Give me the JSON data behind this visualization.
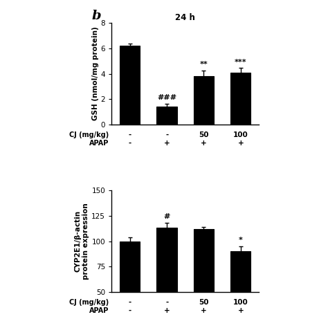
{
  "top_chart": {
    "title": "24 h",
    "ylabel": "GSH (nmol/mg protein)",
    "ylim": [
      0,
      8
    ],
    "yticks": [
      0,
      2,
      4,
      6,
      8
    ],
    "cj_labels": [
      "-",
      "-",
      "50",
      "100"
    ],
    "apap_labels": [
      "-",
      "+",
      "+",
      "+"
    ],
    "values": [
      6.2,
      1.4,
      3.8,
      4.1
    ],
    "errors": [
      0.2,
      0.25,
      0.45,
      0.35
    ],
    "annotations": [
      "",
      "###",
      "**",
      "***"
    ],
    "bar_color": "#000000",
    "xlabel_cj": "CJ (mg/kg)",
    "xlabel_apap": "APAP"
  },
  "bottom_chart": {
    "ylabel": "CYP2E1/β-actin\nprotein expression",
    "ylim": [
      50,
      150
    ],
    "yticks": [
      50,
      75,
      100,
      125,
      150
    ],
    "cj_labels": [
      "-",
      "-",
      "50",
      "100"
    ],
    "apap_labels": [
      "-",
      "+",
      "+",
      "+"
    ],
    "values": [
      100,
      113,
      112,
      90
    ],
    "errors": [
      4,
      5,
      2,
      5
    ],
    "annotations": [
      "",
      "#",
      "",
      "*"
    ],
    "bar_color": "#000000",
    "xlabel_cj": "CJ (mg/kg)",
    "xlabel_apap": "APAP"
  },
  "panel_label": "b",
  "background_color": "#ffffff",
  "bar_width": 0.55,
  "label_fontsize": 7.5,
  "title_fontsize": 8.5,
  "tick_fontsize": 7.5,
  "ann_fontsize": 8
}
